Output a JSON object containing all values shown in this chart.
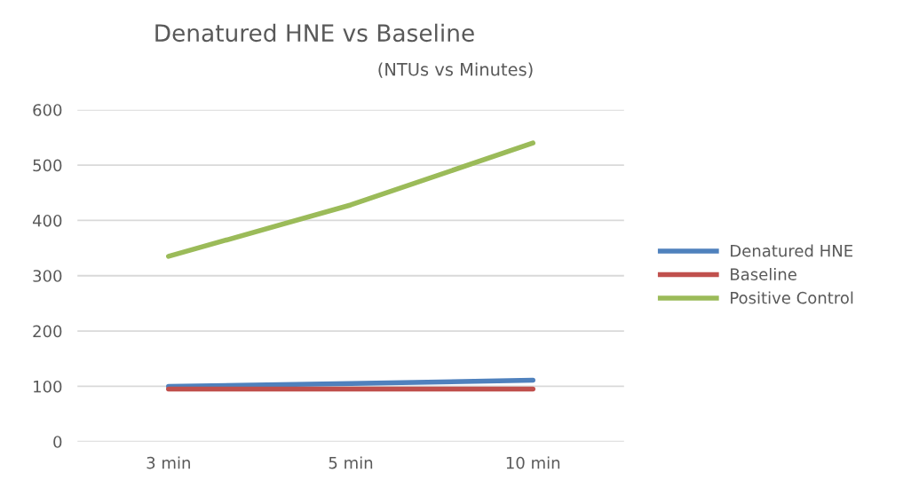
{
  "chart_data": {
    "type": "line",
    "title": "Denatured HNE vs Baseline",
    "subtitle": "(NTUs vs Minutes)",
    "categories": [
      "3 min",
      "5 min",
      "10 min"
    ],
    "series": [
      {
        "name": "Denatured HNE",
        "color": "#4f81bd",
        "values": [
          100,
          105,
          111
        ]
      },
      {
        "name": "Baseline",
        "color": "#c0504d",
        "values": [
          95,
          95,
          95
        ]
      },
      {
        "name": "Positive Control",
        "color": "#9bbb59",
        "values": [
          335,
          428,
          540
        ]
      }
    ],
    "ylim": [
      0,
      600
    ],
    "yticks": [
      0,
      100,
      200,
      300,
      400,
      500,
      600
    ],
    "grid": "y",
    "legend": "right",
    "marker": "none",
    "line_style": "solid"
  }
}
